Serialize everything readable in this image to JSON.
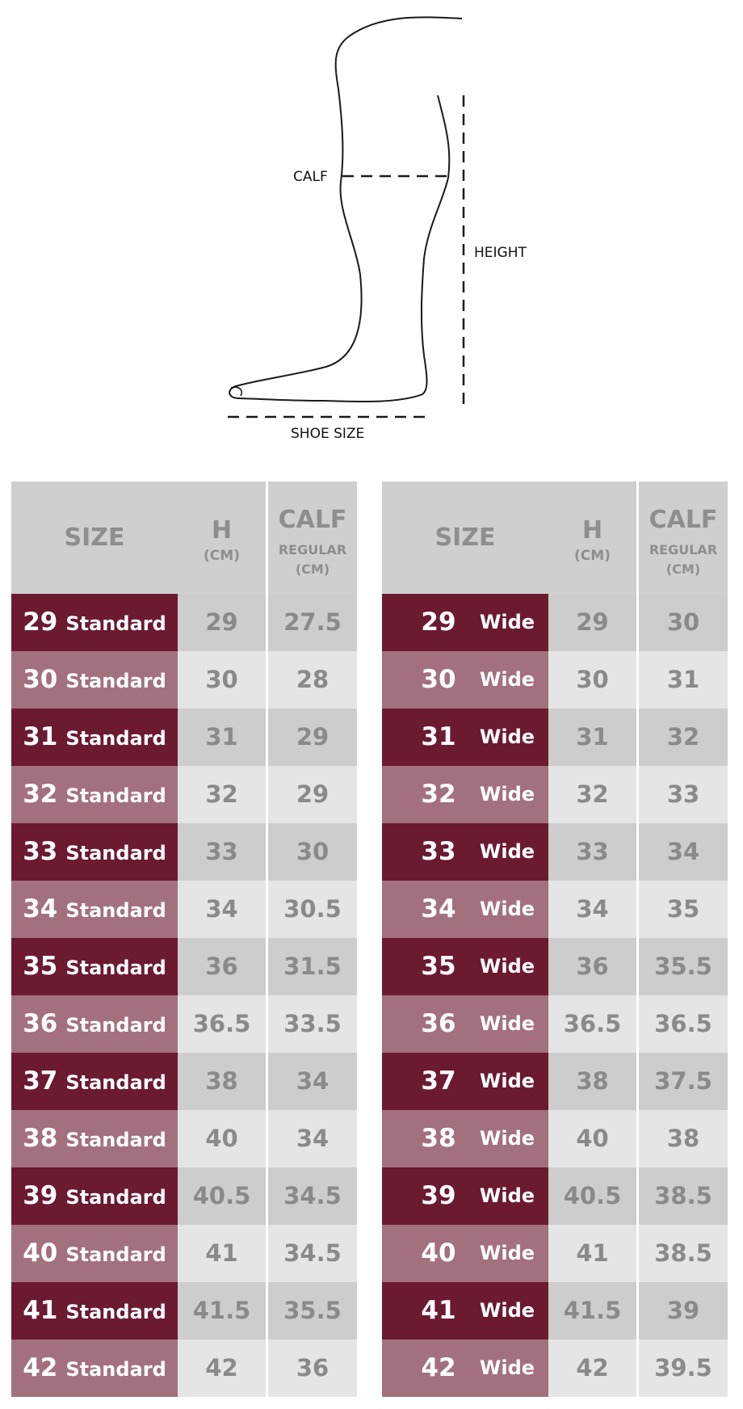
{
  "diagram": {
    "labels": {
      "calf": "CALF",
      "height": "HEIGHT",
      "shoe_size": "SHOE SIZE"
    }
  },
  "tables": {
    "headers": {
      "size": "SIZE",
      "h": "H",
      "h_unit": "(CM)",
      "calf": "CALF",
      "calf_sub": "REGULAR",
      "calf_unit": "(CM)"
    },
    "colors": {
      "size_dark": "#6b1a30",
      "size_light": "#a3717d",
      "header_bg": "#cfcfcf",
      "cell_dark": "#cdcdcd",
      "cell_light": "#e5e5e5",
      "value_text": "#8a8a8a"
    },
    "standard": [
      {
        "size": "29",
        "fit": "Standard",
        "h": "29",
        "calf": "27.5"
      },
      {
        "size": "30",
        "fit": "Standard",
        "h": "30",
        "calf": "28"
      },
      {
        "size": "31",
        "fit": "Standard",
        "h": "31",
        "calf": "29"
      },
      {
        "size": "32",
        "fit": "Standard",
        "h": "32",
        "calf": "29"
      },
      {
        "size": "33",
        "fit": "Standard",
        "h": "33",
        "calf": "30"
      },
      {
        "size": "34",
        "fit": "Standard",
        "h": "34",
        "calf": "30.5"
      },
      {
        "size": "35",
        "fit": "Standard",
        "h": "36",
        "calf": "31.5"
      },
      {
        "size": "36",
        "fit": "Standard",
        "h": "36.5",
        "calf": "33.5"
      },
      {
        "size": "37",
        "fit": "Standard",
        "h": "38",
        "calf": "34"
      },
      {
        "size": "38",
        "fit": "Standard",
        "h": "40",
        "calf": "34"
      },
      {
        "size": "39",
        "fit": "Standard",
        "h": "40.5",
        "calf": "34.5"
      },
      {
        "size": "40",
        "fit": "Standard",
        "h": "41",
        "calf": "34.5"
      },
      {
        "size": "41",
        "fit": "Standard",
        "h": "41.5",
        "calf": "35.5"
      },
      {
        "size": "42",
        "fit": "Standard",
        "h": "42",
        "calf": "36"
      }
    ],
    "wide": [
      {
        "size": "29",
        "fit": "Wide",
        "h": "29",
        "calf": "30"
      },
      {
        "size": "30",
        "fit": "Wide",
        "h": "30",
        "calf": "31"
      },
      {
        "size": "31",
        "fit": "Wide",
        "h": "31",
        "calf": "32"
      },
      {
        "size": "32",
        "fit": "Wide",
        "h": "32",
        "calf": "33"
      },
      {
        "size": "33",
        "fit": "Wide",
        "h": "33",
        "calf": "34"
      },
      {
        "size": "34",
        "fit": "Wide",
        "h": "34",
        "calf": "35"
      },
      {
        "size": "35",
        "fit": "Wide",
        "h": "36",
        "calf": "35.5"
      },
      {
        "size": "36",
        "fit": "Wide",
        "h": "36.5",
        "calf": "36.5"
      },
      {
        "size": "37",
        "fit": "Wide",
        "h": "38",
        "calf": "37.5"
      },
      {
        "size": "38",
        "fit": "Wide",
        "h": "40",
        "calf": "38"
      },
      {
        "size": "39",
        "fit": "Wide",
        "h": "40.5",
        "calf": "38.5"
      },
      {
        "size": "40",
        "fit": "Wide",
        "h": "41",
        "calf": "38.5"
      },
      {
        "size": "41",
        "fit": "Wide",
        "h": "41.5",
        "calf": "39"
      },
      {
        "size": "42",
        "fit": "Wide",
        "h": "42",
        "calf": "39.5"
      }
    ]
  }
}
